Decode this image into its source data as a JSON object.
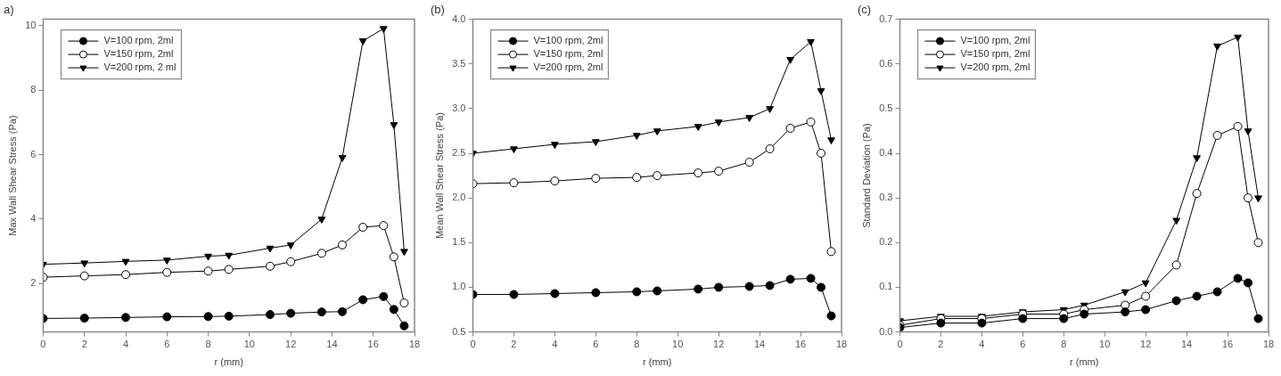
{
  "chart_data": [
    {
      "type": "line",
      "title": "a)",
      "xlabel": "r (mm)",
      "ylabel": "Max Wall Shear Stress (Pa)",
      "x": [
        0,
        2,
        4,
        6,
        8,
        9,
        11,
        12,
        13.5,
        14.5,
        15.5,
        16.5,
        17,
        17.5
      ],
      "xlim": [
        0,
        18
      ],
      "xticks": [
        0,
        2,
        4,
        6,
        8,
        10,
        12,
        14,
        16,
        18
      ],
      "ylim": [
        0.5,
        10.2
      ],
      "yticks": [
        2,
        4,
        6,
        8,
        10
      ],
      "grid": false,
      "legend": "top left",
      "line_style": "solid",
      "series": [
        {
          "name": "V=100 rpm, 2ml",
          "color": "#000000",
          "marker": "circle",
          "values": [
            0.92,
            0.93,
            0.95,
            0.97,
            0.98,
            0.99,
            1.04,
            1.08,
            1.12,
            1.13,
            1.5,
            1.6,
            1.2,
            0.69
          ]
        },
        {
          "name": "V=150 rpm, 2ml",
          "color": "#000000",
          "marker": "circle-open",
          "values": [
            2.2,
            2.24,
            2.28,
            2.35,
            2.39,
            2.44,
            2.54,
            2.68,
            2.94,
            3.2,
            3.75,
            3.8,
            2.83,
            1.4
          ]
        },
        {
          "name": "V=200 rpm, 2 ml",
          "color": "#000000",
          "marker": "triangle",
          "values": [
            2.6,
            2.64,
            2.69,
            2.73,
            2.85,
            2.88,
            3.1,
            3.2,
            4.0,
            5.91,
            9.53,
            9.91,
            6.93,
            3.0
          ]
        }
      ]
    },
    {
      "type": "line",
      "title": "(b)",
      "xlabel": "r (mm)",
      "ylabel": "Mean Wall Shear Stress (Pa)",
      "x": [
        0,
        2,
        4,
        6,
        8,
        9,
        11,
        12,
        13.5,
        14.5,
        15.5,
        16.5,
        17,
        17.5
      ],
      "xlim": [
        0,
        18
      ],
      "xticks": [
        0,
        2,
        4,
        6,
        8,
        10,
        12,
        14,
        16,
        18
      ],
      "ylim": [
        0.5,
        4.0
      ],
      "yticks": [
        {
          "value": 0.5,
          "label": "0.5"
        },
        {
          "value": 1,
          "label": "1.0"
        },
        {
          "value": 1.5,
          "label": "1.5"
        },
        {
          "value": 2,
          "label": "2.0"
        },
        {
          "value": 2.5,
          "label": "2.5"
        },
        {
          "value": 3,
          "label": "3.0"
        },
        {
          "value": 3.5,
          "label": "3.5"
        },
        {
          "value": 4,
          "label": "4.0"
        }
      ],
      "grid": false,
      "legend": "top left",
      "line_style": "solid",
      "series": [
        {
          "name": "V=100 rpm, 2ml",
          "color": "#000000",
          "marker": "circle",
          "values": [
            0.92,
            0.92,
            0.93,
            0.94,
            0.95,
            0.96,
            0.98,
            1.0,
            1.01,
            1.02,
            1.09,
            1.1,
            1.0,
            0.68
          ]
        },
        {
          "name": "V=150 rpm, 2ml",
          "color": "#000000",
          "marker": "circle-open",
          "values": [
            2.16,
            2.17,
            2.19,
            2.22,
            2.23,
            2.25,
            2.28,
            2.3,
            2.4,
            2.55,
            2.78,
            2.85,
            2.5,
            1.4
          ]
        },
        {
          "name": "V=200 rpm, 2ml",
          "color": "#000000",
          "marker": "triangle",
          "values": [
            2.5,
            2.55,
            2.6,
            2.63,
            2.7,
            2.75,
            2.8,
            2.85,
            2.9,
            3.0,
            3.55,
            3.75,
            3.2,
            2.65
          ]
        }
      ]
    },
    {
      "type": "line",
      "title": "(c)",
      "xlabel": "r (mm)",
      "ylabel": "Standard Deviation (Pa)",
      "x": [
        0,
        2,
        4,
        6,
        8,
        9,
        11,
        12,
        13.5,
        14.5,
        15.5,
        16.5,
        17,
        17.5
      ],
      "xlim": [
        0,
        18
      ],
      "xticks": [
        0,
        2,
        4,
        6,
        8,
        10,
        12,
        14,
        16,
        18
      ],
      "ylim": [
        0,
        0.7
      ],
      "yticks": [
        {
          "value": 0,
          "label": "0.0"
        },
        0.1,
        0.2,
        0.3,
        0.4,
        0.5,
        0.6,
        0.7
      ],
      "grid": false,
      "legend": "top left",
      "line_style": "solid",
      "series": [
        {
          "name": "V=100 rpm, 2ml",
          "color": "#000000",
          "marker": "circle",
          "values": [
            0.01,
            0.02,
            0.02,
            0.03,
            0.03,
            0.04,
            0.045,
            0.05,
            0.07,
            0.08,
            0.09,
            0.12,
            0.11,
            0.03
          ]
        },
        {
          "name": "V=150 rpm, 2ml",
          "color": "#000000",
          "marker": "circle-open",
          "values": [
            0.015,
            0.03,
            0.03,
            0.04,
            0.04,
            0.05,
            0.06,
            0.08,
            0.15,
            0.31,
            0.44,
            0.46,
            0.3,
            0.2
          ]
        },
        {
          "name": "V=200 rpm, 2ml",
          "color": "#000000",
          "marker": "triangle",
          "values": [
            0.025,
            0.035,
            0.035,
            0.045,
            0.05,
            0.06,
            0.09,
            0.11,
            0.25,
            0.39,
            0.64,
            0.66,
            0.45,
            0.3
          ]
        }
      ]
    }
  ]
}
